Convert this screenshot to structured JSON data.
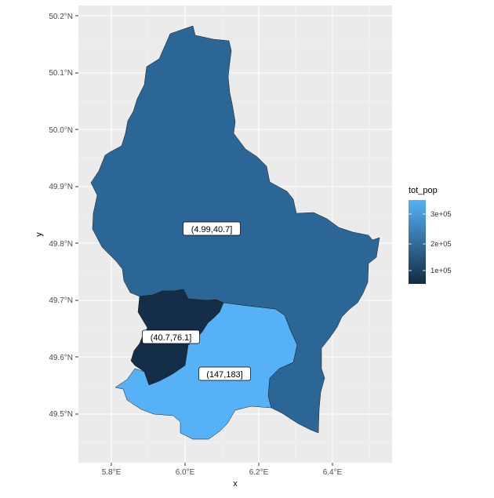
{
  "chart_data": {
    "type": "choropleth map",
    "xlabel": "x",
    "ylabel": "y",
    "x_ticks": [
      "5.8°E",
      "6.0°E",
      "6.2°E",
      "6.4°E"
    ],
    "y_ticks": [
      "49.5°N",
      "49.6°N",
      "49.7°N",
      "49.8°N",
      "49.9°N",
      "50.0°N",
      "50.1°N",
      "50.2°N"
    ],
    "legend": {
      "title": "tot_pop",
      "ticks": [
        "1e+05",
        "2e+05",
        "3e+05"
      ],
      "placement": "right",
      "low_color": "#132b43",
      "high_color": "#56b1f7"
    },
    "regions": [
      {
        "label": "(4.99,40.7]",
        "fill": "#2c6696"
      },
      {
        "label": "(40.7,76.1]",
        "fill": "#152e47"
      },
      {
        "label": "(147,183]",
        "fill": "#56b1f7"
      }
    ]
  }
}
